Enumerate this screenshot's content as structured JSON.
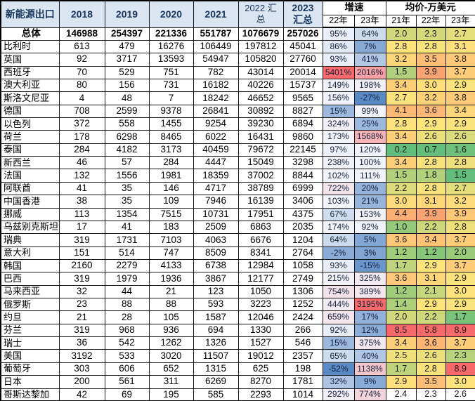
{
  "table": {
    "title_header": "新能源出口",
    "year_headers": [
      "2018",
      "2019",
      "2020",
      "2021"
    ],
    "header_2022": [
      "2022 汇",
      "总"
    ],
    "header_2023": [
      "2023",
      "汇总"
    ],
    "growth_header": "增速",
    "price_header": "均价-万美元",
    "growth_subheaders": [
      "22年",
      "23年"
    ],
    "price_subheaders": [
      "21年",
      "22年",
      "23年"
    ],
    "colors": {
      "header_bg": "#dbe5f1",
      "header_text": "#17375e",
      "growth_min": "#5a8ac6",
      "growth_mid": "#f2f4fb",
      "growth_max": "#f8696b",
      "price_min": "#63be7b",
      "price_mid": "#ffe47c",
      "price_max": "#f8696b"
    },
    "rows": [
      {
        "label": "总体",
        "bold": true,
        "values": [
          "146988",
          "254397",
          "221336",
          "551787",
          "1076679",
          "257026"
        ],
        "growth": [
          "95%",
          "64%"
        ],
        "price": [
          "2.0",
          "2.3",
          "2.7"
        ]
      },
      {
        "label": "比利时",
        "values": [
          "613",
          "479",
          "16276",
          "106449",
          "197812",
          "45041"
        ],
        "growth": [
          "86%",
          "7%"
        ],
        "price": [
          "2.8",
          "2.8",
          "3.1"
        ]
      },
      {
        "label": "英国",
        "values": [
          "92",
          "3717",
          "13593",
          "54947",
          "105820",
          "27760"
        ],
        "growth": [
          "93%",
          "41%"
        ],
        "price": [
          "3.2",
          "3.5",
          "3.8"
        ]
      },
      {
        "label": "西班牙",
        "values": [
          "70",
          "529",
          "751",
          "782",
          "43014",
          "20014"
        ],
        "growth": [
          "5401%",
          "2016%"
        ],
        "price": [
          "1.5",
          "3.9",
          "3.7"
        ]
      },
      {
        "label": "澳大利亚",
        "values": [
          "80",
          "156",
          "731",
          "16182",
          "40226",
          "15737"
        ],
        "growth": [
          "149%",
          "198%"
        ],
        "price": [
          "3.4",
          "3.0",
          "2.9"
        ]
      },
      {
        "label": "斯洛文尼亚",
        "values": [
          "4",
          "48",
          "7",
          "18242",
          "46652",
          "9565"
        ],
        "growth": [
          "156%",
          "-27%"
        ],
        "price": [
          "2.7",
          "3.2",
          "3.8"
        ]
      },
      {
        "label": "德国",
        "values": [
          "708",
          "2599",
          "9378",
          "26841",
          "30892",
          "8827"
        ],
        "growth": [
          "15%",
          "99%"
        ],
        "price": [
          "4.1",
          "3.6",
          "3.4"
        ]
      },
      {
        "label": "以色列",
        "values": [
          "372",
          "558",
          "1455",
          "9254",
          "39230",
          "6894"
        ],
        "growth": [
          "324%",
          "25%"
        ],
        "price": [
          "2.8",
          "2.9",
          "2.9"
        ]
      },
      {
        "label": "荷兰",
        "values": [
          "178",
          "6298",
          "8465",
          "6022",
          "16431",
          "9860"
        ],
        "growth": [
          "173%",
          "1568%"
        ],
        "price": [
          "3.4",
          "2.6",
          "2.6"
        ]
      },
      {
        "label": "泰国",
        "values": [
          "284",
          "4182",
          "3173",
          "40459",
          "79672",
          "22145"
        ],
        "growth": [
          "97%",
          "120%"
        ],
        "price": [
          "0.2",
          "0.7",
          "1.6"
        ]
      },
      {
        "label": "新西兰",
        "values": [
          "46",
          "57",
          "284",
          "4447",
          "15049",
          "3298"
        ],
        "growth": [
          "238%",
          "100%"
        ],
        "price": [
          "3.4",
          "2.8",
          "2.8"
        ]
      },
      {
        "label": "法国",
        "values": [
          "132",
          "1556",
          "1981",
          "18359",
          "37002",
          "8844"
        ],
        "growth": [
          "102%",
          "111%"
        ],
        "price": [
          "1.5",
          "1.8",
          "1.5"
        ]
      },
      {
        "label": "阿联酋",
        "values": [
          "41",
          "35",
          "146",
          "4717",
          "38789",
          "6999"
        ],
        "growth": [
          "722%",
          "20%"
        ],
        "price": [
          "2.2",
          "2.8",
          "2.7"
        ]
      },
      {
        "label": "中国香港",
        "values": [
          "38",
          "35",
          "109",
          "7946",
          "16139",
          "3406"
        ],
        "growth": [
          "103%",
          "21%"
        ],
        "price": [
          "3.0",
          "3.1",
          "3.2"
        ]
      },
      {
        "label": "挪威",
        "values": [
          "113",
          "1354",
          "7515",
          "10731",
          "17951",
          "4375"
        ],
        "growth": [
          "67%",
          "153%"
        ],
        "price": [
          "4.4",
          "3.9",
          "3.9"
        ]
      },
      {
        "label": "乌兹别克斯坦",
        "values": [
          "17",
          "41",
          "183",
          "2509",
          "6863",
          "2035"
        ],
        "growth": [
          "174%",
          "92%"
        ],
        "price": [
          "1.0",
          "2.2",
          "2.8"
        ]
      },
      {
        "label": "瑞典",
        "values": [
          "319",
          "1731",
          "7103",
          "4063",
          "6676",
          "1204"
        ],
        "growth": [
          "64%",
          "5%"
        ],
        "price": [
          "3.6",
          "3.4",
          "3.7"
        ]
      },
      {
        "label": "意大利",
        "values": [
          "151",
          "514",
          "747",
          "8509",
          "8341",
          "2764"
        ],
        "growth": [
          "-2%",
          "3%"
        ],
        "price": [
          "1.2",
          "1.2",
          "2.0"
        ]
      },
      {
        "label": "韩国",
        "values": [
          "2160",
          "2279",
          "4133",
          "6738",
          "12984",
          "1058"
        ],
        "growth": [
          "93%",
          "-15%"
        ],
        "price": [
          "1.7",
          "2.9",
          "3.7"
        ]
      },
      {
        "label": "巴西",
        "values": [
          "319",
          "1979",
          "1936",
          "3867",
          "12177",
          "2749"
        ],
        "growth": [
          "215%",
          "325%"
        ],
        "price": [
          "3.6",
          "3.1",
          "2.9"
        ]
      },
      {
        "label": "马来西亚",
        "values": [
          "32",
          "44",
          "21",
          "123",
          "1050",
          "1306"
        ],
        "growth": [
          "754%",
          "389%"
        ],
        "price": [
          "1.2",
          "2.1",
          "3.0"
        ]
      },
      {
        "label": "俄罗斯",
        "values": [
          "23",
          "88",
          "88",
          "593",
          "3223",
          "1252"
        ],
        "growth": [
          "444%",
          "3195%"
        ],
        "price": [
          "1.4",
          "2.9",
          "2.9"
        ]
      },
      {
        "label": "约旦",
        "values": [
          "21",
          "28",
          "105",
          "1587",
          "12046",
          "2424"
        ],
        "growth": [
          "659%",
          "17%"
        ],
        "price": [
          "2.0",
          "2.2",
          "1.7"
        ]
      },
      {
        "label": "芬兰",
        "values": [
          "319",
          "968",
          "936",
          "694",
          "1330",
          "266"
        ],
        "growth": [
          "92%",
          "12%"
        ],
        "price": [
          "8.5",
          "5.8",
          "8.9"
        ]
      },
      {
        "label": "瑞士",
        "values": [
          "36",
          "542",
          "1262",
          "1326",
          "1527",
          "546"
        ],
        "growth": [
          "15%",
          "375%"
        ],
        "price": [
          "3.4",
          "3.6",
          "3.7"
        ]
      },
      {
        "label": "美国",
        "values": [
          "3192",
          "533",
          "3020",
          "11507",
          "19012",
          "2357"
        ],
        "growth": [
          "65%",
          "40%"
        ],
        "price": [
          "2.5",
          "2.6",
          "2.3"
        ]
      },
      {
        "label": "葡萄牙",
        "values": [
          "303",
          "606",
          "652",
          "1315",
          "625",
          "198"
        ],
        "growth": [
          "-52%",
          "1138%"
        ],
        "price": [
          "1.7",
          "2.8",
          "8.9"
        ]
      },
      {
        "label": "日本",
        "values": [
          "200",
          "561",
          "311",
          "6269",
          "8270",
          "1781"
        ],
        "growth": [
          "32%",
          "9%"
        ],
        "price": [
          "2.9",
          "3.5",
          "3.0"
        ]
      },
      {
        "label": "哥斯达黎加",
        "values": [
          "42",
          "69",
          "195",
          "585",
          "2293",
          "1014"
        ],
        "growth": [
          "292%",
          "774%"
        ],
        "price": [
          "2.4",
          "2.3",
          "2.6"
        ],
        "price_colored": false
      }
    ]
  }
}
